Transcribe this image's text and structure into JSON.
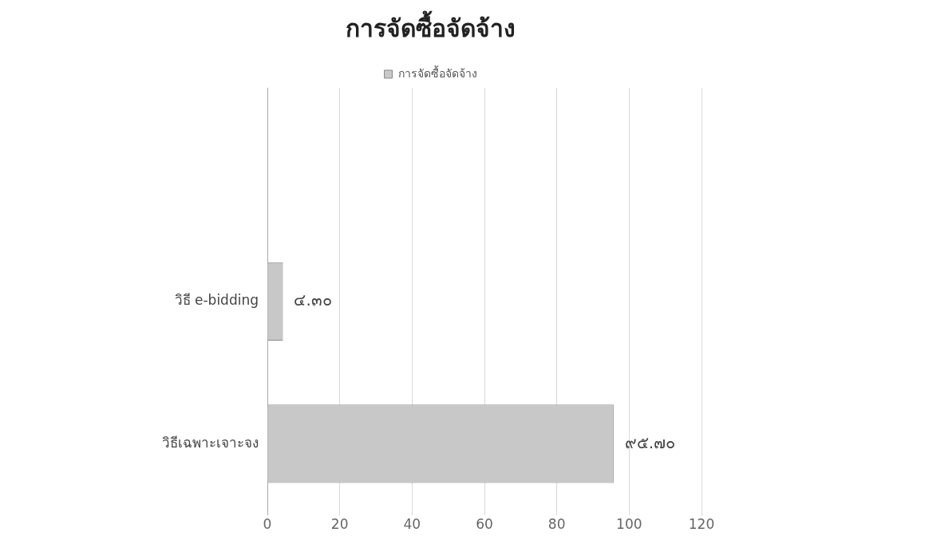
{
  "chart_data": {
    "type": "bar",
    "orientation": "horizontal",
    "title": "การจัดซื้อจัดจ้าง",
    "categories": [
      null,
      "วิธี e-bidding",
      "วิธีเฉพาะเจาะจง"
    ],
    "series": [
      {
        "name": "การจัดซื้อจัดจ้าง",
        "color": "#c8c8c8",
        "values": [
          null,
          4.3,
          95.7
        ],
        "value_labels": [
          null,
          "๔.๓๐",
          "๙๕.๗๐"
        ]
      }
    ],
    "xlim": [
      0,
      120
    ],
    "xticks": [
      0,
      20,
      40,
      60,
      80,
      100,
      120
    ],
    "grid": "x",
    "legend": "top"
  }
}
